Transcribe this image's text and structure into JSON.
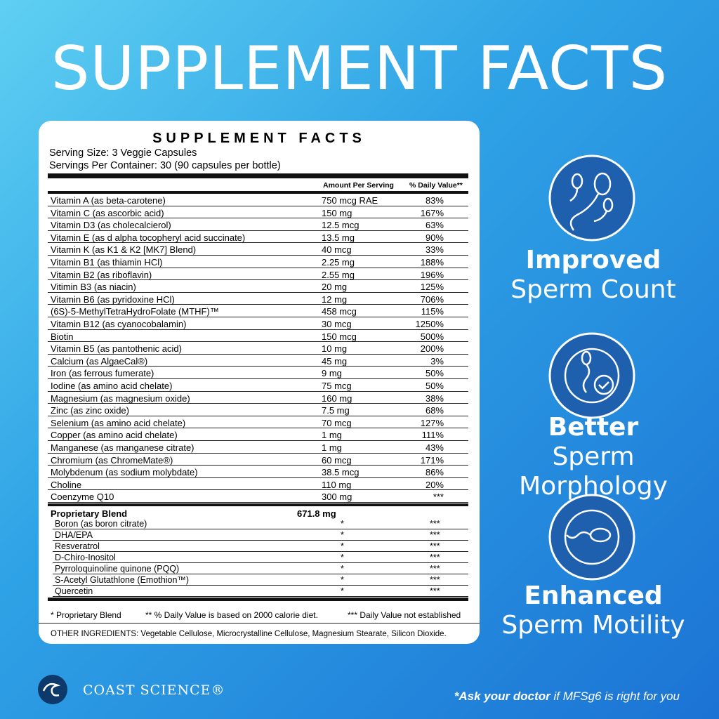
{
  "header": {
    "title": "SUPPLEMENT FACTS"
  },
  "label": {
    "title": "SUPPLEMENT FACTS",
    "serving_size": "Serving Size: 3 Veggie Capsules",
    "servings_per_container": "Servings Per Container: 30 (90 capsules per bottle)",
    "columns": [
      "Amount Per Serving",
      "% Daily Value**"
    ],
    "rows": [
      [
        "Vitamin A (as beta-carotene)",
        "750 mcg RAE",
        "83%"
      ],
      [
        "Vitamin C (as ascorbic acid)",
        "150 mg",
        "167%"
      ],
      [
        "Vitamin D3 (as cholecalcierol)",
        "12.5 mcg",
        "63%"
      ],
      [
        "Vitamin E (as d alpha tocopheryl acid succinate)",
        "13.5 mg",
        "90%"
      ],
      [
        "Vitamin K (as K1 & K2 [MK7] Blend)",
        "40 mcg",
        "33%"
      ],
      [
        "Vitamin B1 (as thiamin HCl)",
        "2.25 mg",
        "188%"
      ],
      [
        "Vitamin B2 (as riboflavin)",
        "2.55 mg",
        "196%"
      ],
      [
        "Vitimin B3 (as niacin)",
        "20 mg",
        "125%"
      ],
      [
        "Vitamin B6 (as pyridoxine HCl)",
        "12 mg",
        "706%"
      ],
      [
        "(6S)-5-MethylTetraHydroFolate (MTHF)™",
        "458 mcg",
        "115%"
      ],
      [
        "Vitamin B12 (as cyanocobalamin)",
        "30 mcg",
        "1250%"
      ],
      [
        "Biotin",
        "150 mcg",
        "500%"
      ],
      [
        "Vitamin B5 (as pantothenic acid)",
        "10 mg",
        "200%"
      ],
      [
        "Calcium (as AlgaeCal®)",
        "45 mg",
        "3%"
      ],
      [
        "Iron (as ferrous fumerate)",
        "9 mg",
        "50%"
      ],
      [
        "Iodine (as amino acid chelate)",
        "75 mcg",
        "50%"
      ],
      [
        "Magnesium (as magnesium oxide)",
        "160 mg",
        "38%"
      ],
      [
        "Zinc (as zinc oxide)",
        "7.5 mg",
        "68%"
      ],
      [
        "Selenium (as amino acid chelate)",
        "70 mcg",
        "127%"
      ],
      [
        "Copper (as amino acid chelate)",
        "1 mg",
        "111%"
      ],
      [
        "Manganese (as manganese citrate)",
        "1 mg",
        "43%"
      ],
      [
        "Chromium (as ChromeMate®)",
        "60 mcg",
        "171%"
      ],
      [
        "Molybdenum (as sodium molybdate)",
        "38.5 mcg",
        "86%"
      ],
      [
        "Choline",
        "110 mg",
        "20%"
      ],
      [
        "Coenzyme Q10",
        "300 mg",
        "***"
      ]
    ],
    "blend": {
      "name": "Proprietary Blend",
      "amount": "671.8 mg",
      "rows": [
        [
          "Boron (as boron citrate)",
          "*",
          "***"
        ],
        [
          "DHA/EPA",
          "*",
          "***"
        ],
        [
          "Resveratrol",
          "*",
          "***"
        ],
        [
          "D-Chiro-Inositol",
          "*",
          "***"
        ],
        [
          "Pyrroloquinoline quinone (PQQ)",
          "*",
          "***"
        ],
        [
          "S-Acetyl Glutathlone (Emothion™)",
          "*",
          "***"
        ],
        [
          "Quercetin",
          "*",
          "***"
        ]
      ]
    },
    "footnotes": [
      "* Proprietary Blend",
      "** % Daily Value is based on 2000 calorie diet.",
      "*** Daily Value not established"
    ],
    "other_ingredients": "OTHER INGREDIENTS: Vegetable Cellulose, Microcrystalline Cellulose, Magnesium Stearate, Silicon Dioxide."
  },
  "benefits": [
    {
      "bold": "Improved",
      "regular": "Sperm Count"
    },
    {
      "bold": "Better",
      "regular": "Sperm Morphology"
    },
    {
      "bold": "Enhanced",
      "regular": "Sperm Motility"
    }
  ],
  "brand": "COAST SCIENCE®",
  "disclaimer": {
    "bold": "*Ask your doctor",
    "regular": "if MFSg6 is right for you"
  }
}
